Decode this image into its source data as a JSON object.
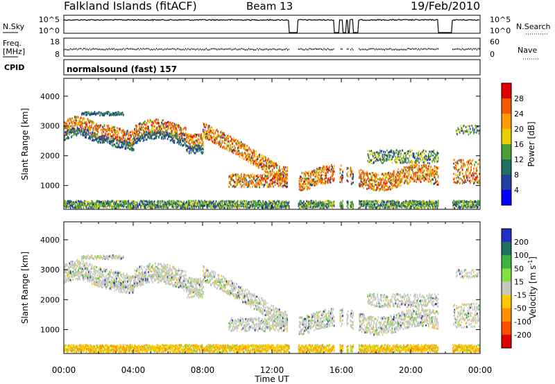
{
  "header": {
    "title": "Falkland Islands (fitACF)",
    "beam": "Beam 13",
    "date": "19/Feb/2010"
  },
  "chart_data": [
    {
      "type": "line",
      "name": "noise-panel",
      "left_label": "N.Sky",
      "right_label": "N.Search",
      "left_ticks": [
        "10^5",
        "10^0"
      ],
      "right_ticks": [
        "10^5",
        "10^0"
      ],
      "gaps_hours": [
        [
          13.0,
          13.5
        ],
        [
          15.6,
          15.9
        ],
        [
          16.1,
          16.3
        ],
        [
          16.4,
          16.5
        ],
        [
          16.7,
          17.0
        ],
        [
          21.6,
          22.4
        ]
      ]
    },
    {
      "type": "line",
      "name": "freq-panel",
      "left_label": "Freq.",
      "left_unit": "[MHz]",
      "right_label": "Nave",
      "left_ticks": [
        18,
        8
      ],
      "right_ticks": [
        60,
        0
      ]
    },
    {
      "type": "table",
      "name": "cpid-strip",
      "label": "CPID",
      "value": "normalsound (fast) 157"
    },
    {
      "type": "heatmap",
      "name": "power-panel",
      "ylabel": "Slant Range [km]",
      "xlabel": "Time UT",
      "x_ticks": [
        "00:00",
        "04:00",
        "08:00",
        "12:00",
        "16:00",
        "20:00",
        "00:00"
      ],
      "y_ticks": [
        1000,
        2000,
        3000,
        4000
      ],
      "ylim": [
        200,
        4600
      ],
      "xlim": [
        0,
        24
      ],
      "colorbar": {
        "label": "Power [dB]",
        "ticks": [
          28,
          24,
          20,
          16,
          12,
          8,
          4
        ],
        "colors": [
          "#e00000",
          "#f45a00",
          "#ff9a00",
          "#e8d000",
          "#4ca03a",
          "#207060",
          "#2040a0",
          "#0000ff"
        ]
      }
    },
    {
      "type": "heatmap",
      "name": "velocity-panel",
      "ylabel": "Slant Range [km]",
      "xlabel": "Time UT",
      "x_ticks": [
        "00:00",
        "04:00",
        "08:00",
        "12:00",
        "16:00",
        "20:00",
        "00:00"
      ],
      "y_ticks": [
        1000,
        2000,
        3000,
        4000
      ],
      "ylim": [
        200,
        4600
      ],
      "xlim": [
        0,
        24
      ],
      "colorbar": {
        "label": "Velocity [m s",
        "label_sup": "-1",
        "label_close": "]",
        "ticks": [
          "200",
          "100",
          "50",
          "15",
          "-15",
          "-50",
          "-100",
          "-200"
        ],
        "colors": [
          "#2030c0",
          "#207060",
          "#40b040",
          "#80e040",
          "#c8c8c0",
          "#ffc800",
          "#ff9000",
          "#ff5000",
          "#e00000"
        ]
      }
    }
  ]
}
